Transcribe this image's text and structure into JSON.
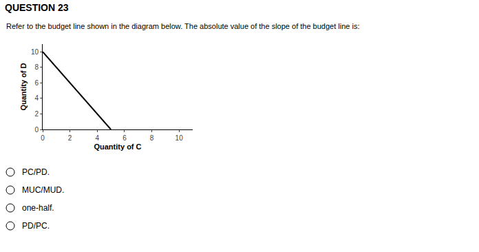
{
  "chart_data": {
    "type": "line",
    "title": "QUESTION 23",
    "subtitle": "Refer to the budget line shown in the diagram below. The absolute value of the slope of the budget line is:",
    "xlabel": "Quantity of C",
    "ylabel": "Quantity of D",
    "x": [
      0,
      5
    ],
    "values": [
      10,
      0
    ],
    "color": "#000000",
    "xlim": [
      0,
      11
    ],
    "ylim": [
      0,
      11
    ],
    "xticks": [
      0,
      2,
      4,
      6,
      8,
      10
    ],
    "yticks": [
      0,
      2,
      4,
      6,
      8,
      10
    ],
    "grid": false,
    "annotations": [
      "PC/PD.",
      "MUC/MUD.",
      "one-half.",
      "PD/PC."
    ]
  }
}
